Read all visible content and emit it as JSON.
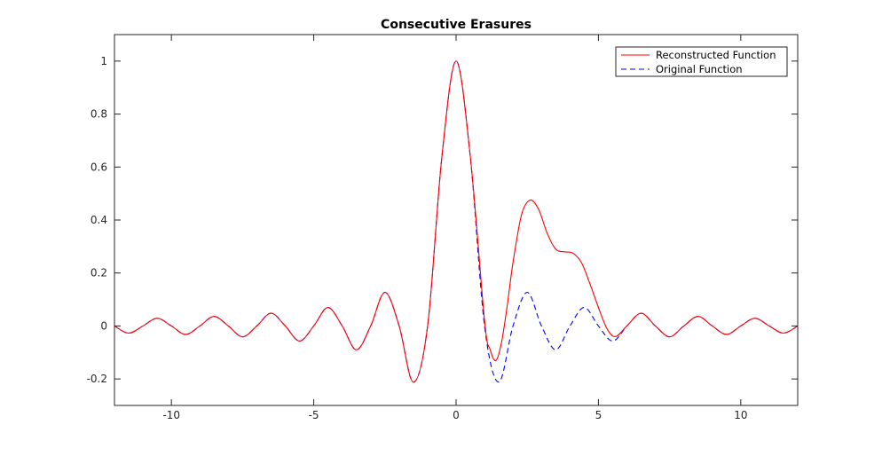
{
  "chart_data": {
    "type": "line",
    "title": "Consecutive Erasures",
    "xlabel": "",
    "ylabel": "",
    "xlim": [
      -12,
      12
    ],
    "ylim": [
      -0.3,
      1.1
    ],
    "x_ticks": [
      -10,
      -5,
      0,
      5,
      10
    ],
    "x_tick_labels": [
      "-10",
      "-5",
      "0",
      "5",
      "10"
    ],
    "y_ticks": [
      -0.2,
      0,
      0.2,
      0.4,
      0.6,
      0.8,
      1
    ],
    "y_tick_labels": [
      "-0.2",
      "0",
      "0.2",
      "0.4",
      "0.6",
      "0.8",
      "1"
    ],
    "grid": false,
    "legend_position": "top-right",
    "series": [
      {
        "name": "Reconstructed Function",
        "color": "#ff0000",
        "style": "solid",
        "points": [
          [
            -12,
            0.0
          ],
          [
            -11.5,
            -0.027
          ],
          [
            -11,
            0.0
          ],
          [
            -10.5,
            0.029
          ],
          [
            -10,
            0.0
          ],
          [
            -9.5,
            -0.032
          ],
          [
            -9,
            0.0
          ],
          [
            -8.5,
            0.036
          ],
          [
            -8,
            0.0
          ],
          [
            -7.5,
            -0.041
          ],
          [
            -7,
            0.0
          ],
          [
            -6.5,
            0.048
          ],
          [
            -6,
            0.0
          ],
          [
            -5.5,
            -0.057
          ],
          [
            -5,
            0.0
          ],
          [
            -4.5,
            0.07
          ],
          [
            -4,
            0.0
          ],
          [
            -3.5,
            -0.09
          ],
          [
            -3,
            0.0
          ],
          [
            -2.5,
            0.127
          ],
          [
            -2,
            0.0
          ],
          [
            -1.5,
            -0.212
          ],
          [
            -1,
            0.0
          ],
          [
            -0.5,
            0.637
          ],
          [
            0,
            1.0
          ],
          [
            0.5,
            0.64
          ],
          [
            1,
            0.02
          ],
          [
            1.2,
            -0.09
          ],
          [
            1.4,
            -0.13
          ],
          [
            1.6,
            -0.06
          ],
          [
            1.8,
            0.08
          ],
          [
            2.0,
            0.24
          ],
          [
            2.3,
            0.42
          ],
          [
            2.6,
            0.475
          ],
          [
            2.9,
            0.44
          ],
          [
            3.2,
            0.35
          ],
          [
            3.5,
            0.29
          ],
          [
            3.8,
            0.28
          ],
          [
            4.1,
            0.275
          ],
          [
            4.4,
            0.24
          ],
          [
            4.7,
            0.16
          ],
          [
            5.0,
            0.07
          ],
          [
            5.3,
            -0.01
          ],
          [
            5.6,
            -0.04
          ],
          [
            6,
            0.0
          ],
          [
            6.5,
            0.048
          ],
          [
            7,
            0.0
          ],
          [
            7.5,
            -0.041
          ],
          [
            8,
            0.0
          ],
          [
            8.5,
            0.036
          ],
          [
            9,
            0.0
          ],
          [
            9.5,
            -0.032
          ],
          [
            10,
            0.0
          ],
          [
            10.5,
            0.029
          ],
          [
            11,
            0.0
          ],
          [
            11.5,
            -0.027
          ],
          [
            12,
            0.0
          ]
        ]
      },
      {
        "name": "Original Function",
        "color": "#0000ff",
        "style": "dashed",
        "points": [
          [
            -12,
            0.0
          ],
          [
            -11.5,
            -0.027
          ],
          [
            -11,
            0.0
          ],
          [
            -10.5,
            0.029
          ],
          [
            -10,
            0.0
          ],
          [
            -9.5,
            -0.032
          ],
          [
            -9,
            0.0
          ],
          [
            -8.5,
            0.036
          ],
          [
            -8,
            0.0
          ],
          [
            -7.5,
            -0.041
          ],
          [
            -7,
            0.0
          ],
          [
            -6.5,
            0.048
          ],
          [
            -6,
            0.0
          ],
          [
            -5.5,
            -0.057
          ],
          [
            -5,
            0.0
          ],
          [
            -4.5,
            0.07
          ],
          [
            -4,
            0.0
          ],
          [
            -3.5,
            -0.09
          ],
          [
            -3,
            0.0
          ],
          [
            -2.5,
            0.127
          ],
          [
            -2,
            0.0
          ],
          [
            -1.5,
            -0.212
          ],
          [
            -1,
            0.0
          ],
          [
            -0.5,
            0.637
          ],
          [
            0,
            1.0
          ],
          [
            0.5,
            0.637
          ],
          [
            1,
            0.0
          ],
          [
            1.5,
            -0.212
          ],
          [
            2,
            0.0
          ],
          [
            2.5,
            0.127
          ],
          [
            3,
            0.0
          ],
          [
            3.5,
            -0.09
          ],
          [
            4,
            0.0
          ],
          [
            4.5,
            0.07
          ],
          [
            5,
            0.0
          ],
          [
            5.5,
            -0.057
          ],
          [
            6,
            0.0
          ],
          [
            6.5,
            0.048
          ],
          [
            7,
            0.0
          ],
          [
            7.5,
            -0.041
          ],
          [
            8,
            0.0
          ],
          [
            8.5,
            0.036
          ],
          [
            9,
            0.0
          ],
          [
            9.5,
            -0.032
          ],
          [
            10,
            0.0
          ],
          [
            10.5,
            0.029
          ],
          [
            11,
            0.0
          ],
          [
            11.5,
            -0.027
          ],
          [
            12,
            0.0
          ]
        ]
      }
    ]
  }
}
